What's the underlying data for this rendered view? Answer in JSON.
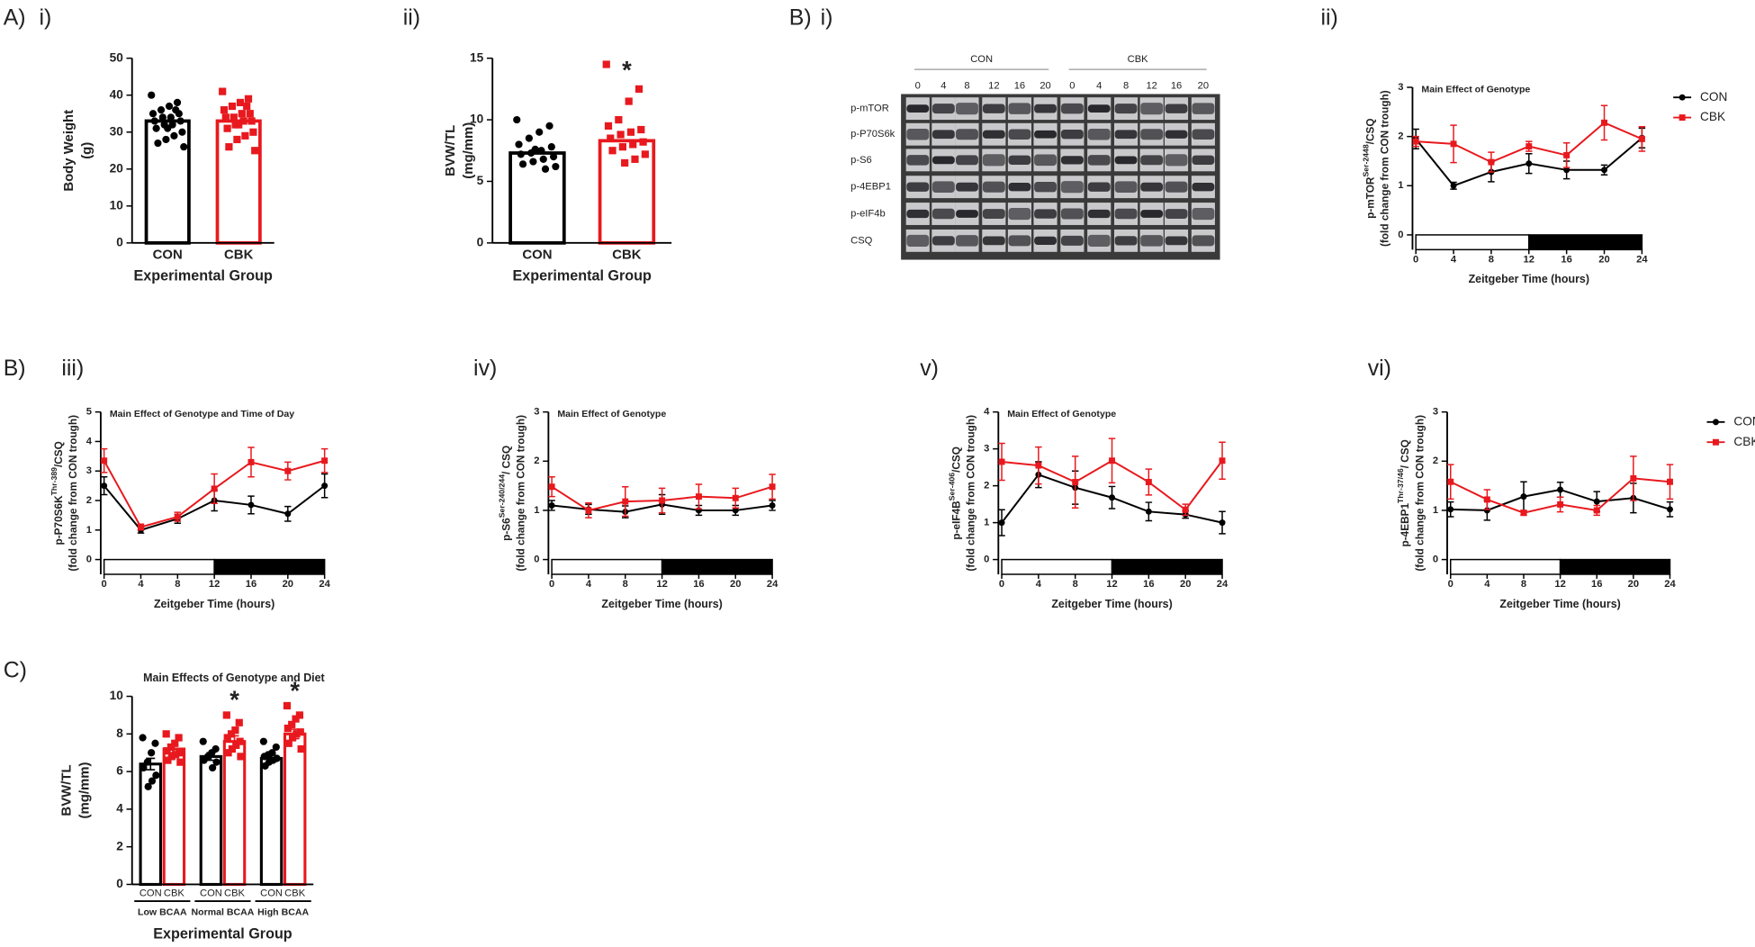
{
  "chart_data": [
    {
      "type": "bar",
      "panel_letter": "A)",
      "panel": "i)",
      "categories": [
        "CON",
        "CBK"
      ],
      "values": [
        33,
        33
      ],
      "colors": [
        "#000000",
        "#e8191e"
      ],
      "markers": [
        "circle",
        "square"
      ],
      "points": [
        [
          40,
          38,
          37,
          36,
          35,
          35,
          34,
          34,
          33,
          33,
          32,
          32,
          31,
          30,
          29,
          28,
          27,
          26,
          36,
          31
        ],
        [
          41,
          39,
          38,
          37,
          36,
          35,
          35,
          34,
          34,
          33,
          33,
          32,
          31,
          30,
          29,
          28,
          26,
          25,
          37,
          32
        ]
      ],
      "ylim": [
        0,
        50
      ],
      "yticks": [
        0,
        10,
        20,
        30,
        40,
        50
      ],
      "ylabel": [
        "Body Weight",
        "(g)"
      ],
      "xlabel": "Experimental Group"
    },
    {
      "type": "bar",
      "panel": "ii)",
      "categories": [
        "CON",
        "CBK"
      ],
      "values": [
        7.3,
        8.3
      ],
      "colors": [
        "#000000",
        "#e8191e"
      ],
      "markers": [
        "circle",
        "square"
      ],
      "points": [
        [
          10,
          9.5,
          9,
          8.5,
          8,
          7.8,
          7.5,
          7.3,
          7.2,
          7,
          6.8,
          6.6,
          6.4,
          6.2,
          6,
          7.6
        ],
        [
          14.5,
          12.5,
          11.5,
          10,
          9.5,
          9.2,
          9,
          8.8,
          8.5,
          8.2,
          8,
          7.8,
          7.5,
          7.2,
          6.8,
          6.5
        ]
      ],
      "sig": [
        null,
        "*"
      ],
      "ylim": [
        0,
        15
      ],
      "yticks": [
        0,
        5,
        10,
        15
      ],
      "ylabel": [
        "BVW/TL",
        "(mg/mm)"
      ],
      "xlabel": "Experimental Group"
    },
    {
      "type": "blot",
      "panel_letter": "B)",
      "panel": "i)",
      "groups": [
        "CON",
        "CBK"
      ],
      "lanes": [
        0,
        4,
        8,
        12,
        16,
        20
      ],
      "rows": [
        "p-mTOR",
        "p-P70S6k",
        "p-S6",
        "p-4EBP1",
        "p-eIF4b",
        "CSQ"
      ]
    },
    {
      "type": "line",
      "panel": "ii)",
      "annotation": "Main Effect of Genotype",
      "x": [
        0,
        4,
        8,
        12,
        16,
        20,
        24
      ],
      "xlim": [
        0,
        24
      ],
      "xticks": [
        0,
        4,
        8,
        12,
        16,
        20,
        24
      ],
      "ylim": [
        -0.3,
        3
      ],
      "yticks": [
        0,
        1,
        2,
        3
      ],
      "ylabel": {
        "main": "p-mTOR",
        "sup": "Ser-2448",
        "rest": "/CSQ"
      },
      "ylabel2": "(fold change from CON trough)",
      "xlabel": "Zeitgeber Time (hours)",
      "legend": true,
      "light_dark": {
        "light": [
          0,
          12
        ],
        "dark": [
          12,
          24
        ]
      },
      "series": [
        {
          "name": "CON",
          "color": "#000000",
          "marker": "circle",
          "values": [
            1.95,
            1.0,
            1.28,
            1.45,
            1.32,
            1.32,
            1.97
          ],
          "errors": [
            0.2,
            0.07,
            0.2,
            0.2,
            0.18,
            0.1,
            0.2
          ]
        },
        {
          "name": "CBK",
          "color": "#e8191e",
          "marker": "square",
          "values": [
            1.9,
            1.85,
            1.48,
            1.8,
            1.62,
            2.28,
            1.95
          ],
          "errors": [
            0.1,
            0.38,
            0.2,
            0.1,
            0.25,
            0.35,
            0.25
          ]
        }
      ]
    },
    {
      "type": "line",
      "panel_letter": "B)",
      "panel": "iii)",
      "annotation": "Main Effect of Genotype and Time of Day",
      "x": [
        0,
        4,
        8,
        12,
        16,
        20,
        24
      ],
      "xlim": [
        0,
        24
      ],
      "xticks": [
        0,
        4,
        8,
        12,
        16,
        20,
        24
      ],
      "ylim": [
        -0.5,
        5
      ],
      "yticks": [
        0,
        1,
        2,
        3,
        4,
        5
      ],
      "ylabel": {
        "main": "p-P70S6K",
        "sup": "Thr-389",
        "rest": "/CSQ"
      },
      "ylabel2": "(fold change from CON trough)",
      "xlabel": "Zeitgeber Time (hours)",
      "legend": false,
      "light_dark": {
        "light": [
          0,
          12
        ],
        "dark": [
          12,
          24
        ]
      },
      "series": [
        {
          "name": "CON",
          "color": "#000000",
          "marker": "circle",
          "values": [
            2.5,
            1.0,
            1.38,
            2.0,
            1.85,
            1.55,
            2.5
          ],
          "errors": [
            0.3,
            0.1,
            0.15,
            0.35,
            0.3,
            0.25,
            0.4
          ]
        },
        {
          "name": "CBK",
          "color": "#e8191e",
          "marker": "square",
          "values": [
            3.35,
            1.1,
            1.45,
            2.4,
            3.3,
            3.0,
            3.35
          ],
          "errors": [
            0.4,
            0.1,
            0.15,
            0.5,
            0.5,
            0.3,
            0.4
          ]
        }
      ]
    },
    {
      "type": "line",
      "panel": "iv)",
      "annotation": "Main Effect of Genotype",
      "x": [
        0,
        4,
        8,
        12,
        16,
        20,
        24
      ],
      "xlim": [
        0,
        24
      ],
      "xticks": [
        0,
        4,
        8,
        12,
        16,
        20,
        24
      ],
      "ylim": [
        -0.3,
        3
      ],
      "yticks": [
        0,
        1,
        2,
        3
      ],
      "ylabel": {
        "main": "p-S6",
        "sup": "Ser-240/244",
        "rest": "/ CSQ"
      },
      "ylabel2": "(fold change from CON trough)",
      "xlabel": "Zeitgeber Time (hours)",
      "legend": false,
      "light_dark": {
        "light": [
          0,
          12
        ],
        "dark": [
          12,
          24
        ]
      },
      "series": [
        {
          "name": "CON",
          "color": "#000000",
          "marker": "circle",
          "values": [
            1.1,
            1.02,
            0.97,
            1.12,
            1.0,
            1.0,
            1.1
          ],
          "errors": [
            0.1,
            0.1,
            0.12,
            0.2,
            0.1,
            0.1,
            0.1
          ]
        },
        {
          "name": "CBK",
          "color": "#e8191e",
          "marker": "square",
          "values": [
            1.48,
            1.0,
            1.18,
            1.2,
            1.28,
            1.25,
            1.48
          ],
          "errors": [
            0.2,
            0.15,
            0.3,
            0.25,
            0.25,
            0.2,
            0.25
          ]
        }
      ]
    },
    {
      "type": "line",
      "panel": "v)",
      "annotation": "Main Effect of Genotype",
      "x": [
        0,
        4,
        8,
        12,
        16,
        20,
        24
      ],
      "xlim": [
        0,
        24
      ],
      "xticks": [
        0,
        4,
        8,
        12,
        16,
        20,
        24
      ],
      "ylim": [
        -0.4,
        4
      ],
      "yticks": [
        0,
        1,
        2,
        3,
        4
      ],
      "ylabel": {
        "main": "p-eIF4B",
        "sup": "Ser-406",
        "rest": "/CSQ"
      },
      "ylabel2": "(fold change from CON trough)",
      "xlabel": "Zeitgeber Time (hours)",
      "legend": false,
      "light_dark": {
        "light": [
          0,
          12
        ],
        "dark": [
          12,
          24
        ]
      },
      "series": [
        {
          "name": "CON",
          "color": "#000000",
          "marker": "circle",
          "values": [
            1.0,
            2.3,
            1.95,
            1.68,
            1.3,
            1.22,
            1.0
          ],
          "errors": [
            0.35,
            0.35,
            0.45,
            0.3,
            0.25,
            0.1,
            0.3
          ]
        },
        {
          "name": "CBK",
          "color": "#e8191e",
          "marker": "square",
          "values": [
            2.65,
            2.55,
            2.1,
            2.68,
            2.1,
            1.35,
            2.68
          ],
          "errors": [
            0.5,
            0.5,
            0.7,
            0.6,
            0.35,
            0.15,
            0.5
          ]
        }
      ]
    },
    {
      "type": "line",
      "panel": "vi)",
      "x": [
        0,
        4,
        8,
        12,
        16,
        20,
        24
      ],
      "xlim": [
        0,
        24
      ],
      "xticks": [
        0,
        4,
        8,
        12,
        16,
        20,
        24
      ],
      "ylim": [
        -0.3,
        3
      ],
      "yticks": [
        0,
        1,
        2,
        3
      ],
      "ylabel": {
        "main": "p-4EBP1",
        "sup": "Thr-37/46",
        "rest": "/ CSQ"
      },
      "ylabel2": "(fold change from CON trough)",
      "xlabel": "Zeitgeber Time (hours)",
      "legend": true,
      "light_dark": {
        "light": [
          0,
          12
        ],
        "dark": [
          12,
          24
        ]
      },
      "series": [
        {
          "name": "CON",
          "color": "#000000",
          "marker": "circle",
          "values": [
            1.02,
            1.0,
            1.28,
            1.42,
            1.18,
            1.25,
            1.02
          ],
          "errors": [
            0.15,
            0.2,
            0.3,
            0.15,
            0.2,
            0.3,
            0.15
          ]
        },
        {
          "name": "CBK",
          "color": "#e8191e",
          "marker": "square",
          "values": [
            1.58,
            1.22,
            0.95,
            1.12,
            1.0,
            1.65,
            1.58
          ],
          "errors": [
            0.35,
            0.2,
            0.05,
            0.15,
            0.1,
            0.45,
            0.35
          ]
        }
      ]
    },
    {
      "type": "grouped_bar",
      "panel": "C)",
      "title": "Main Effects of Genotype and Diet",
      "categories": [
        "Low BCAA",
        "Normal BCAA",
        "High BCAA"
      ],
      "ylim": [
        0,
        10
      ],
      "yticks": [
        0,
        2,
        4,
        6,
        8,
        10
      ],
      "ylabel": [
        "BVW/TL",
        "(mg/mm)"
      ],
      "xlabel": "Experimental Group",
      "series": [
        {
          "name": "CON",
          "color": "#000000",
          "marker": "circle",
          "values": [
            6.4,
            6.8,
            6.7
          ],
          "errors": [
            0.3,
            0.2,
            0.2
          ],
          "points": [
            [
              7.8,
              7.5,
              7.0,
              6.5,
              6.2,
              5.8,
              5.5,
              5.2
            ],
            [
              7.6,
              7.2,
              7.0,
              6.8,
              6.6,
              6.5,
              6.2
            ],
            [
              7.6,
              7.3,
              7.0,
              6.9,
              6.8,
              6.7,
              6.6,
              6.5,
              6.3
            ]
          ]
        },
        {
          "name": "CBK",
          "color": "#e8191e",
          "marker": "square",
          "values": [
            7.2,
            7.6,
            8.0
          ],
          "errors": [
            0.2,
            0.3,
            0.25
          ],
          "sig": [
            null,
            "*",
            "*"
          ],
          "points": [
            [
              8,
              7.8,
              7.5,
              7.3,
              7.1,
              7,
              6.9,
              6.8,
              6.6,
              6.5
            ],
            [
              9,
              8.6,
              8.2,
              8,
              7.8,
              7.6,
              7.4,
              7.2,
              7.0,
              6.8
            ],
            [
              9.5,
              9.0,
              8.8,
              8.5,
              8.3,
              8.1,
              8.0,
              7.8,
              7.5,
              7.2
            ]
          ]
        }
      ]
    }
  ]
}
